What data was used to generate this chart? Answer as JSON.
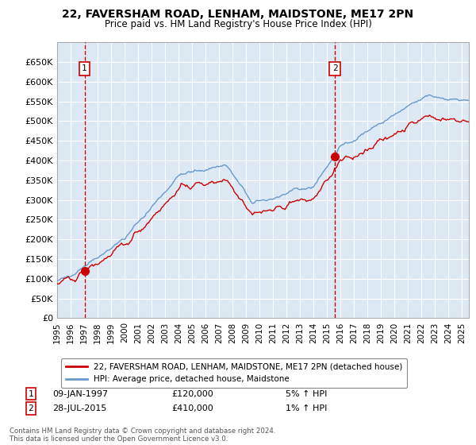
{
  "title1": "22, FAVERSHAM ROAD, LENHAM, MAIDSTONE, ME17 2PN",
  "title2": "Price paid vs. HM Land Registry's House Price Index (HPI)",
  "legend_line1": "22, FAVERSHAM ROAD, LENHAM, MAIDSTONE, ME17 2PN (detached house)",
  "legend_line2": "HPI: Average price, detached house, Maidstone",
  "annotation1_date": "09-JAN-1997",
  "annotation1_price": "£120,000",
  "annotation1_hpi": "5% ↑ HPI",
  "annotation2_date": "28-JUL-2015",
  "annotation2_price": "£410,000",
  "annotation2_hpi": "1% ↑ HPI",
  "footer": "Contains HM Land Registry data © Crown copyright and database right 2024.\nThis data is licensed under the Open Government Licence v3.0.",
  "hpi_color": "#6699cc",
  "price_color": "#cc0000",
  "dot_color": "#cc0000",
  "vline_color": "#cc0000",
  "plot_bg": "#dce9f5",
  "grid_color": "#ffffff",
  "ylim": [
    0,
    700000
  ],
  "yticks": [
    0,
    50000,
    100000,
    150000,
    200000,
    250000,
    300000,
    350000,
    400000,
    450000,
    500000,
    550000,
    600000,
    650000
  ],
  "purchase1_x": 1997.03,
  "purchase1_y": 120000,
  "purchase2_x": 2015.57,
  "purchase2_y": 410000,
  "xmin": 1995.0,
  "xmax": 2025.5
}
